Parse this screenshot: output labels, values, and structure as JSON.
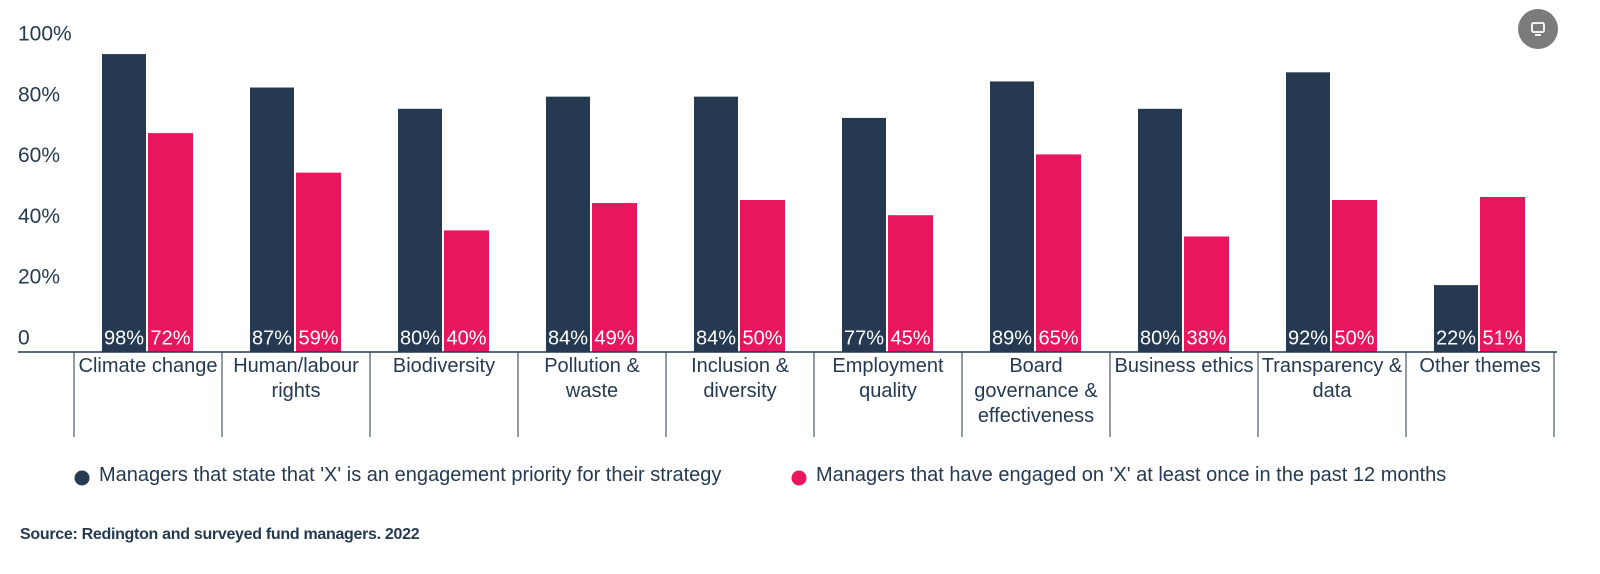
{
  "chart_data": {
    "type": "bar",
    "categories": [
      "Climate change",
      "Human/labour rights",
      "Biodiversity",
      "Pollution & waste",
      "Inclusion & diversity",
      "Employment quality",
      "Board governance & effectiveness",
      "Business ethics",
      "Transparency & data",
      "Other themes"
    ],
    "series": [
      {
        "name": "Managers that state that 'X' is an engagement priority for their strategy",
        "color": "#253a50",
        "values": [
          98,
          87,
          80,
          84,
          84,
          77,
          89,
          80,
          92,
          22
        ],
        "value_labels": [
          "98%",
          "87%",
          "80%",
          "84%",
          "84%",
          "77%",
          "89%",
          "80%",
          "92%",
          "22%"
        ]
      },
      {
        "name": "Managers that have engaged on 'X' at least once in the past 12 months",
        "color": "#e8175d",
        "values": [
          72,
          59,
          40,
          49,
          50,
          45,
          65,
          38,
          50,
          51
        ],
        "value_labels": [
          "72%",
          "59%",
          "40%",
          "49%",
          "50%",
          "45%",
          "65%",
          "38%",
          "50%",
          "51%"
        ]
      }
    ],
    "ylim": [
      0,
      100
    ],
    "yticks": [
      0,
      {
        "value": 20,
        "label": "20%"
      },
      {
        "value": 40,
        "label": "40%"
      },
      {
        "value": 60,
        "label": "60%"
      },
      {
        "value": 80,
        "label": "80%"
      },
      {
        "value": 100,
        "label": "100%"
      }
    ],
    "grid": false,
    "source": "Source: Redington and surveyed fund managers. 2022"
  }
}
